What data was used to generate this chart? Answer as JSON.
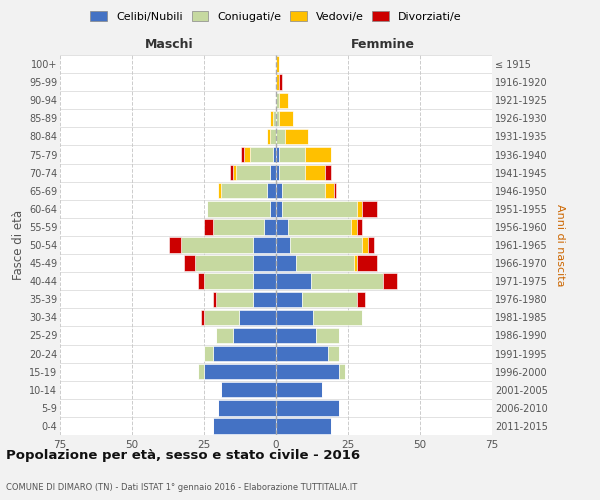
{
  "age_groups": [
    "0-4",
    "5-9",
    "10-14",
    "15-19",
    "20-24",
    "25-29",
    "30-34",
    "35-39",
    "40-44",
    "45-49",
    "50-54",
    "55-59",
    "60-64",
    "65-69",
    "70-74",
    "75-79",
    "80-84",
    "85-89",
    "90-94",
    "95-99",
    "100+"
  ],
  "birth_years": [
    "2011-2015",
    "2006-2010",
    "2001-2005",
    "1996-2000",
    "1991-1995",
    "1986-1990",
    "1981-1985",
    "1976-1980",
    "1971-1975",
    "1966-1970",
    "1961-1965",
    "1956-1960",
    "1951-1955",
    "1946-1950",
    "1941-1945",
    "1936-1940",
    "1931-1935",
    "1926-1930",
    "1921-1925",
    "1916-1920",
    "≤ 1915"
  ],
  "colors": {
    "celibi": "#4472c4",
    "coniugati": "#c6d9a0",
    "vedovi": "#ffc000",
    "divorziati": "#cc0000"
  },
  "maschi": {
    "celibi": [
      22,
      20,
      19,
      25,
      22,
      15,
      13,
      8,
      8,
      8,
      8,
      4,
      2,
      3,
      2,
      1,
      0,
      0,
      0,
      0,
      0
    ],
    "coniugati": [
      0,
      0,
      0,
      2,
      3,
      6,
      12,
      13,
      17,
      20,
      25,
      18,
      22,
      16,
      12,
      8,
      2,
      1,
      0,
      0,
      0
    ],
    "vedovi": [
      0,
      0,
      0,
      0,
      0,
      0,
      0,
      0,
      0,
      0,
      0,
      0,
      0,
      1,
      1,
      2,
      1,
      1,
      0,
      0,
      0
    ],
    "divorziati": [
      0,
      0,
      0,
      0,
      0,
      0,
      1,
      1,
      2,
      4,
      4,
      3,
      0,
      0,
      1,
      1,
      0,
      0,
      0,
      0,
      0
    ]
  },
  "femmine": {
    "celibi": [
      19,
      22,
      16,
      22,
      18,
      14,
      13,
      9,
      12,
      7,
      5,
      4,
      2,
      2,
      1,
      1,
      0,
      0,
      0,
      0,
      0
    ],
    "coniugati": [
      0,
      0,
      0,
      2,
      4,
      8,
      17,
      19,
      25,
      20,
      25,
      22,
      26,
      15,
      9,
      9,
      3,
      1,
      1,
      0,
      0
    ],
    "vedovi": [
      0,
      0,
      0,
      0,
      0,
      0,
      0,
      0,
      0,
      1,
      2,
      2,
      2,
      3,
      7,
      9,
      8,
      5,
      3,
      1,
      1
    ],
    "divorziati": [
      0,
      0,
      0,
      0,
      0,
      0,
      0,
      3,
      5,
      7,
      2,
      2,
      5,
      1,
      2,
      0,
      0,
      0,
      0,
      1,
      0
    ]
  },
  "xlim": 75,
  "title_main": "Popolazione per età, sesso e stato civile - 2016",
  "title_sub": "COMUNE DI DIMARO (TN) - Dati ISTAT 1° gennaio 2016 - Elaborazione TUTTITALIA.IT",
  "ylabel_left": "Fasce di età",
  "ylabel_right": "Anni di nascita",
  "xlabel_maschi": "Maschi",
  "xlabel_femmine": "Femmine",
  "legend_labels": [
    "Celibi/Nubili",
    "Coniugati/e",
    "Vedovi/e",
    "Divorziati/e"
  ],
  "background_color": "#f2f2f2",
  "plot_bg": "#ffffff",
  "grid_color": "#cccccc",
  "text_color": "#555555"
}
